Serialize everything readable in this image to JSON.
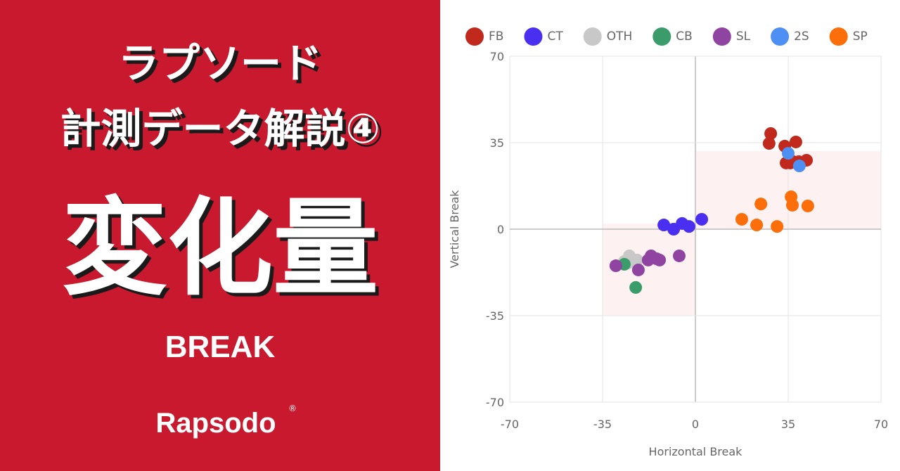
{
  "banner": {
    "line1": "ラプソード",
    "line2": "計測データ解説④",
    "headline": "変化量",
    "subtitle": "BREAK",
    "brand": "Rapsodo",
    "brand_mark": "®"
  },
  "chart_data": {
    "type": "scatter",
    "xlabel": "Horizontal Break",
    "ylabel": "Vertical Break",
    "xlim": [
      -70,
      70
    ],
    "ylim": [
      -70,
      70
    ],
    "xticks": [
      -70,
      -35,
      0,
      35,
      70
    ],
    "yticks": [
      -70,
      -35,
      0,
      35,
      70
    ],
    "grid": true,
    "legend": "top",
    "series": [
      {
        "name": "FB",
        "color": "#c0291c",
        "x": [
          28.4,
          27.8,
          33.7,
          37.9,
          34.2,
          36.9,
          39.0,
          41.9,
          35.8
        ],
        "values": [
          38.7,
          34.7,
          33.6,
          35.3,
          26.8,
          27.3,
          27.3,
          27.9,
          26.8
        ]
      },
      {
        "name": "CT",
        "color": "#4a2ff0",
        "x": [
          -11.9,
          -8.2,
          -5.0,
          -2.4,
          2.4
        ],
        "values": [
          1.7,
          0,
          2.3,
          1.1,
          4.0
        ]
      },
      {
        "name": "OTH",
        "color": "#c8c8c8",
        "x": [
          -24.9,
          -25.5,
          -22.0,
          -26.8
        ],
        "values": [
          -10.8,
          -13.7,
          -12.5,
          -13.1
        ]
      },
      {
        "name": "CB",
        "color": "#3a9c6a",
        "x": [
          -22.5,
          -26.8
        ],
        "values": [
          -23.6,
          -14.2
        ]
      },
      {
        "name": "SL",
        "color": "#8e44a0",
        "x": [
          -30.0,
          -21.5,
          -16.7,
          -14.6,
          -13.5,
          -6.1,
          -17.8
        ],
        "values": [
          -14.8,
          -16.5,
          -10.8,
          -12.0,
          -12.5,
          -10.8,
          -12.5
        ]
      },
      {
        "name": "2S",
        "color": "#4d8ff2",
        "x": [
          35.0,
          39.2
        ],
        "values": [
          30.7,
          25.6
        ]
      },
      {
        "name": "SP",
        "color": "#fb6e0a",
        "x": [
          24.7,
          36.1,
          36.6,
          42.4,
          17.5,
          23.1,
          30.8
        ],
        "values": [
          10.2,
          13.1,
          9.7,
          9.4,
          4.0,
          1.7,
          1.1
        ]
      }
    ]
  }
}
